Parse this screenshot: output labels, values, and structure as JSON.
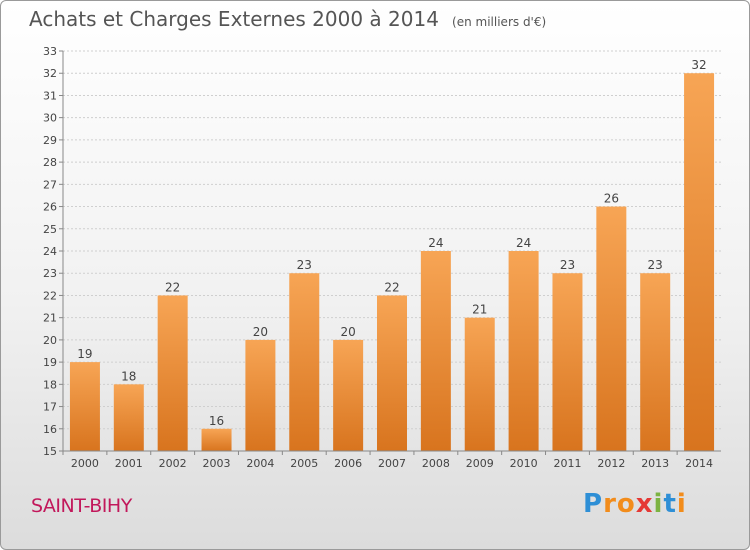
{
  "header": {
    "title": "Achats et Charges Externes 2000 à 2014",
    "unit": "(en milliers d'€)"
  },
  "footer": {
    "commune": "SAINT-BIHY",
    "logo": {
      "letters": [
        "P",
        "r",
        "o",
        "x",
        "i",
        "t",
        "i"
      ],
      "colors": [
        "#2e8fd6",
        "#f28c1b",
        "#f28c1b",
        "#e53935",
        "#7cb342",
        "#2e8fd6",
        "#f28c1b"
      ]
    }
  },
  "colors": {
    "bar_light": "#f7a555",
    "bar_dark": "#d8741e",
    "grid": "#cfcfcf",
    "axis": "#888888",
    "text": "#444444"
  },
  "chart_data": {
    "type": "bar",
    "title": "Achats et Charges Externes 2000 à 2014",
    "subtitle": "(en milliers d'€)",
    "categories": [
      "2000",
      "2001",
      "2002",
      "2003",
      "2004",
      "2005",
      "2006",
      "2007",
      "2008",
      "2009",
      "2010",
      "2011",
      "2012",
      "2013",
      "2014"
    ],
    "values": [
      19,
      18,
      22,
      16,
      20,
      23,
      20,
      22,
      24,
      21,
      24,
      23,
      26,
      23,
      32
    ],
    "ylim": [
      15,
      33
    ],
    "yticks": [
      15,
      16,
      17,
      18,
      19,
      20,
      21,
      22,
      23,
      24,
      25,
      26,
      27,
      28,
      29,
      30,
      31,
      32,
      33
    ],
    "grid": true,
    "data_labels": true,
    "xlabel": "",
    "ylabel": ""
  }
}
